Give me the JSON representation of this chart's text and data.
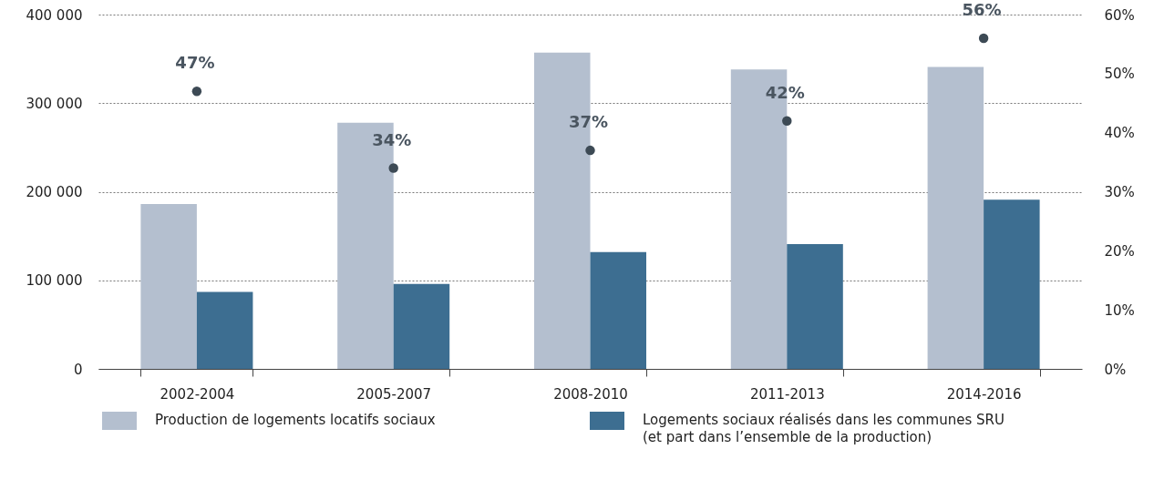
{
  "chart_data": {
    "type": "bar",
    "categories": [
      "2002-2004",
      "2005-2007",
      "2008-2010",
      "2011-2013",
      "2014-2016"
    ],
    "series": [
      {
        "name": "Production de logements locatifs sociaux",
        "color": "#b4bfcf",
        "values": [
          186000,
          278000,
          357000,
          338000,
          341000
        ]
      },
      {
        "name": "Logements sociaux réalisés dans les communes SRU\n(et part dans l’ensemble de la production)",
        "color": "#3d6e91",
        "values": [
          87000,
          96000,
          132000,
          141000,
          191000
        ]
      },
      {
        "type": "scatter",
        "axis": "y2",
        "color": "#3d4a55",
        "values": [
          47,
          34,
          37,
          42,
          56
        ],
        "value_labels": [
          "47%",
          "34%",
          "37%",
          "42%",
          "56%"
        ]
      }
    ],
    "ylim": [
      0,
      400000
    ],
    "yticks": [
      {
        "value": 0,
        "label": "0"
      },
      {
        "value": 100000,
        "label": "100 000"
      },
      {
        "value": 200000,
        "label": "200 000"
      },
      {
        "value": 300000,
        "label": "300 000"
      },
      {
        "value": 400000,
        "label": "400 000"
      }
    ],
    "y2lim": [
      0,
      60
    ],
    "y2ticks": [
      {
        "value": 0,
        "label": "0%"
      },
      {
        "value": 10,
        "label": "10%"
      },
      {
        "value": 20,
        "label": "20%"
      },
      {
        "value": 30,
        "label": "30%"
      },
      {
        "value": 40,
        "label": "40%"
      },
      {
        "value": 50,
        "label": "50%"
      },
      {
        "value": 60,
        "label": "60%"
      }
    ],
    "grid": "y",
    "legend": "bottom",
    "marker": "circle"
  }
}
